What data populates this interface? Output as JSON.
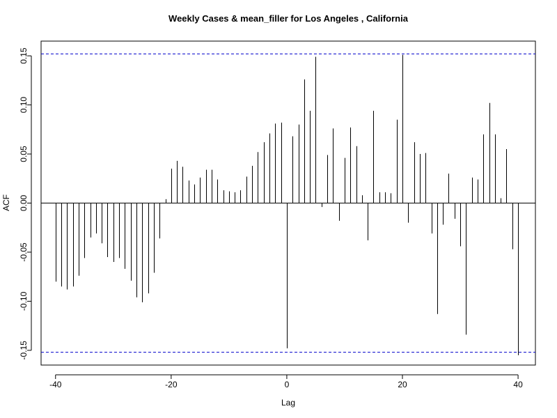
{
  "chart_data": {
    "type": "bar",
    "title": "Weekly Cases & mean_filler for Los Angeles , California",
    "xlabel": "Lag",
    "ylabel": "ACF",
    "xlim": [
      -42.5,
      43
    ],
    "ylim": [
      -0.165,
      0.165
    ],
    "x_ticks": [
      -40,
      -20,
      0,
      20,
      40
    ],
    "x_tick_labels": [
      "-40",
      "-20",
      "0",
      "20",
      "40"
    ],
    "y_ticks": [
      -0.15,
      -0.1,
      -0.05,
      0.0,
      0.05,
      0.1,
      0.15
    ],
    "y_tick_labels": [
      "-0.15",
      "-0.10",
      "-0.05",
      "0.00",
      "0.05",
      "0.10",
      "0.15"
    ],
    "confidence_bound": 0.152,
    "colors": {
      "bars": "#000000",
      "ci": "#0000cc",
      "zero_line": "#000000"
    },
    "x": [
      -40,
      -39,
      -38,
      -37,
      -36,
      -35,
      -34,
      -33,
      -32,
      -31,
      -30,
      -29,
      -28,
      -27,
      -26,
      -25,
      -24,
      -23,
      -22,
      -21,
      -20,
      -19,
      -18,
      -17,
      -16,
      -15,
      -14,
      -13,
      -12,
      -11,
      -10,
      -9,
      -8,
      -7,
      -6,
      -5,
      -4,
      -3,
      -2,
      -1,
      0,
      1,
      2,
      3,
      4,
      5,
      6,
      7,
      8,
      9,
      10,
      11,
      12,
      13,
      14,
      15,
      16,
      17,
      18,
      19,
      20,
      21,
      22,
      23,
      24,
      25,
      26,
      27,
      28,
      29,
      30,
      31,
      32,
      33,
      34,
      35,
      36,
      37,
      38,
      39,
      40
    ],
    "values": [
      -0.08,
      -0.085,
      -0.088,
      -0.085,
      -0.074,
      -0.056,
      -0.035,
      -0.031,
      -0.041,
      -0.055,
      -0.06,
      -0.056,
      -0.067,
      -0.079,
      -0.096,
      -0.101,
      -0.092,
      -0.071,
      -0.036,
      0.004,
      0.035,
      0.043,
      0.037,
      0.023,
      0.019,
      0.026,
      0.034,
      0.034,
      0.024,
      0.013,
      0.012,
      0.011,
      0.013,
      0.027,
      0.038,
      0.052,
      0.062,
      0.071,
      0.081,
      0.082,
      -0.148,
      0.068,
      0.08,
      0.126,
      0.094,
      0.149,
      -0.004,
      0.049,
      0.076,
      -0.018,
      0.046,
      0.077,
      0.058,
      0.008,
      -0.038,
      0.094,
      0.011,
      0.011,
      0.01,
      0.085,
      0.151,
      -0.02,
      0.062,
      0.05,
      0.051,
      -0.031,
      -0.113,
      -0.022,
      0.03,
      -0.016,
      -0.044,
      -0.134,
      0.026,
      0.024,
      0.07,
      0.102,
      0.07,
      0.005,
      0.055,
      -0.047,
      -0.155
    ]
  }
}
